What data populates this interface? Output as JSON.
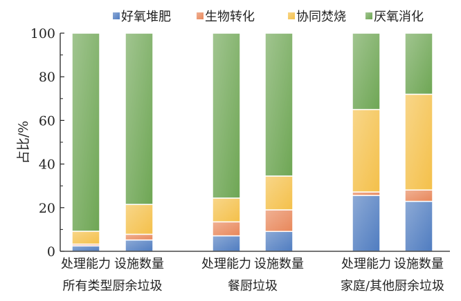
{
  "chart_data": {
    "type": "bar",
    "stacked": true,
    "ylabel": "占比/%",
    "ylim": [
      0,
      100
    ],
    "yticks": [
      "0",
      "20",
      "40",
      "60",
      "80",
      "100"
    ],
    "grid": false,
    "legend_position": "top",
    "categories": [
      "处理能力",
      "设施数量",
      "处理能力",
      "设施数量",
      "处理能力",
      "设施数量"
    ],
    "groups": [
      "所有类型厨余垃圾",
      "餐厨垃圾",
      "家庭/其他厨余垃圾"
    ],
    "series": [
      {
        "name": "好氧堆肥",
        "color": "#4f7cc0",
        "values": [
          2.5,
          5.2,
          7.1,
          9.1,
          25.6,
          22.9
        ]
      },
      {
        "name": "生物转化",
        "color": "#e8875a",
        "values": [
          0.8,
          2.6,
          6.4,
          9.9,
          1.6,
          5.2
        ]
      },
      {
        "name": "协同焚烧",
        "color": "#f4c04a",
        "values": [
          5.9,
          13.7,
          10.9,
          15.5,
          37.8,
          43.9
        ]
      },
      {
        "name": "厌氧消化",
        "color": "#6ea654",
        "values": [
          90.8,
          78.5,
          75.6,
          65.5,
          35.0,
          28.0
        ]
      }
    ]
  }
}
